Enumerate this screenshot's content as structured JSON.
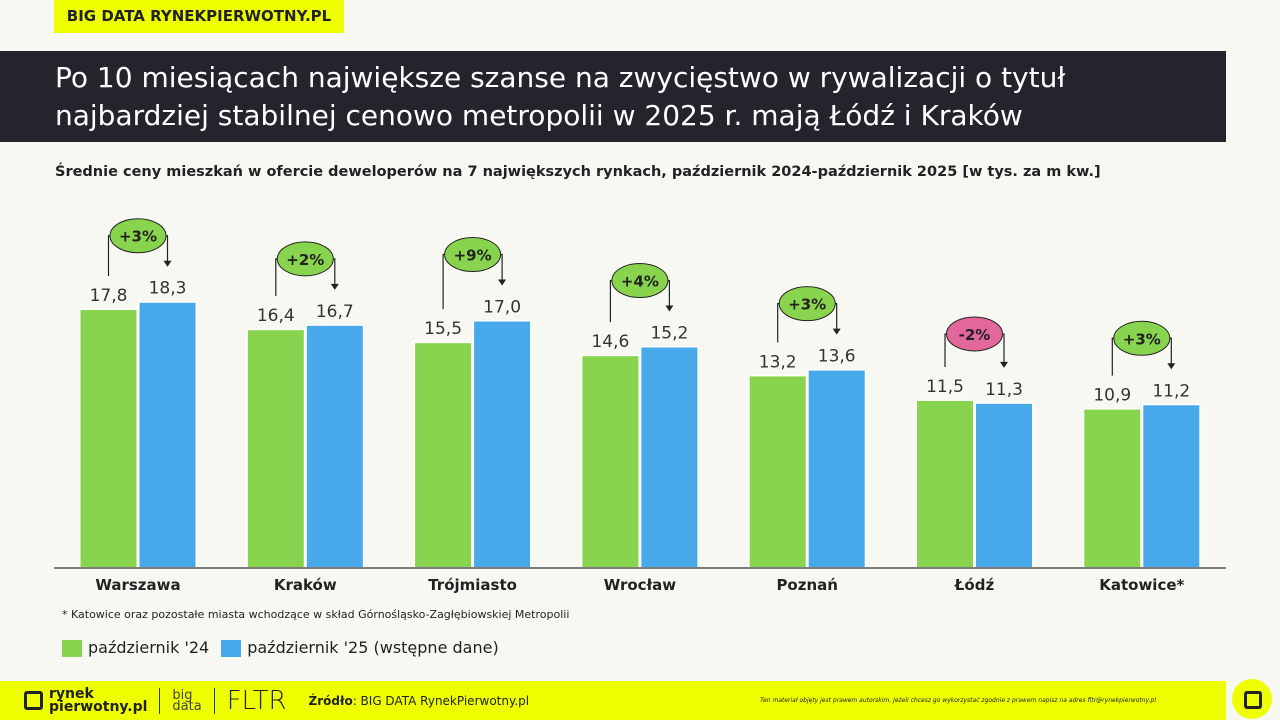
{
  "tag": "BIG DATA RYNEKPIERWOTNY.PL",
  "title_line1": "Po 10 miesiącach największe szanse na zwycięstwo w rywalizacji o tytuł",
  "title_line2": "najbardziej stabilnej cenowo metropolii w 2025 r. mają Łódź i Kraków",
  "subtitle": "Średnie ceny mieszkań w ofercie deweloperów na 7 największych rynkach, październik 2024-październik 2025 [w tys. za m kw.]",
  "footnote": "* Katowice oraz pozostałe miasta wchodzące w skład Górnośląsko-Zagłębiowskiej Metropolii",
  "footer": {
    "logo1": "rynek",
    "logo2": "pierwotny.pl",
    "logo3a": "big",
    "logo3b": "data",
    "logo4": "FLTR",
    "source_label": "Źródło",
    "source": ": BIG DATA RynekPierwotny.pl",
    "copyright": "Ten materiał objęty jest prawem autorskim. Jeżeli chcesz go wykorzystać zgodnie z prawem napisz na adres fltr@rynekpierwotny.pl"
  },
  "chart_data": {
    "type": "bar",
    "title": "Średnie ceny mieszkań w ofercie deweloperów na 7 największych rynkach, październik 2024-październik 2025 [w tys. za m kw.]",
    "categories": [
      "Warszawa",
      "Kraków",
      "Trójmiasto",
      "Wrocław",
      "Poznań",
      "Łódź",
      "Katowice*"
    ],
    "series": [
      {
        "name": "październik '24",
        "color": "#88d44e",
        "values": [
          17.8,
          16.4,
          15.5,
          14.6,
          13.2,
          11.5,
          10.9
        ]
      },
      {
        "name": "październik  '25 (wstępne dane)",
        "color": "#47a9ea",
        "values": [
          18.3,
          16.7,
          17.0,
          15.2,
          13.6,
          11.3,
          11.2
        ]
      }
    ],
    "value_labels": [
      [
        "17,8",
        "16,4",
        "15,5",
        "14,6",
        "13,2",
        "11,5",
        "10,9"
      ],
      [
        "18,3",
        "16,7",
        "17,0",
        "15,2",
        "13,6",
        "11,3",
        "11,2"
      ]
    ],
    "changes": [
      "+3%",
      "+2%",
      "+9%",
      "+4%",
      "+3%",
      "-2%",
      "+3%"
    ],
    "change_colors": {
      "positive": "#88d44e",
      "negative": "#e2679a"
    },
    "ylim": [
      0,
      25
    ],
    "grid": false,
    "legend": "bottom-left"
  }
}
